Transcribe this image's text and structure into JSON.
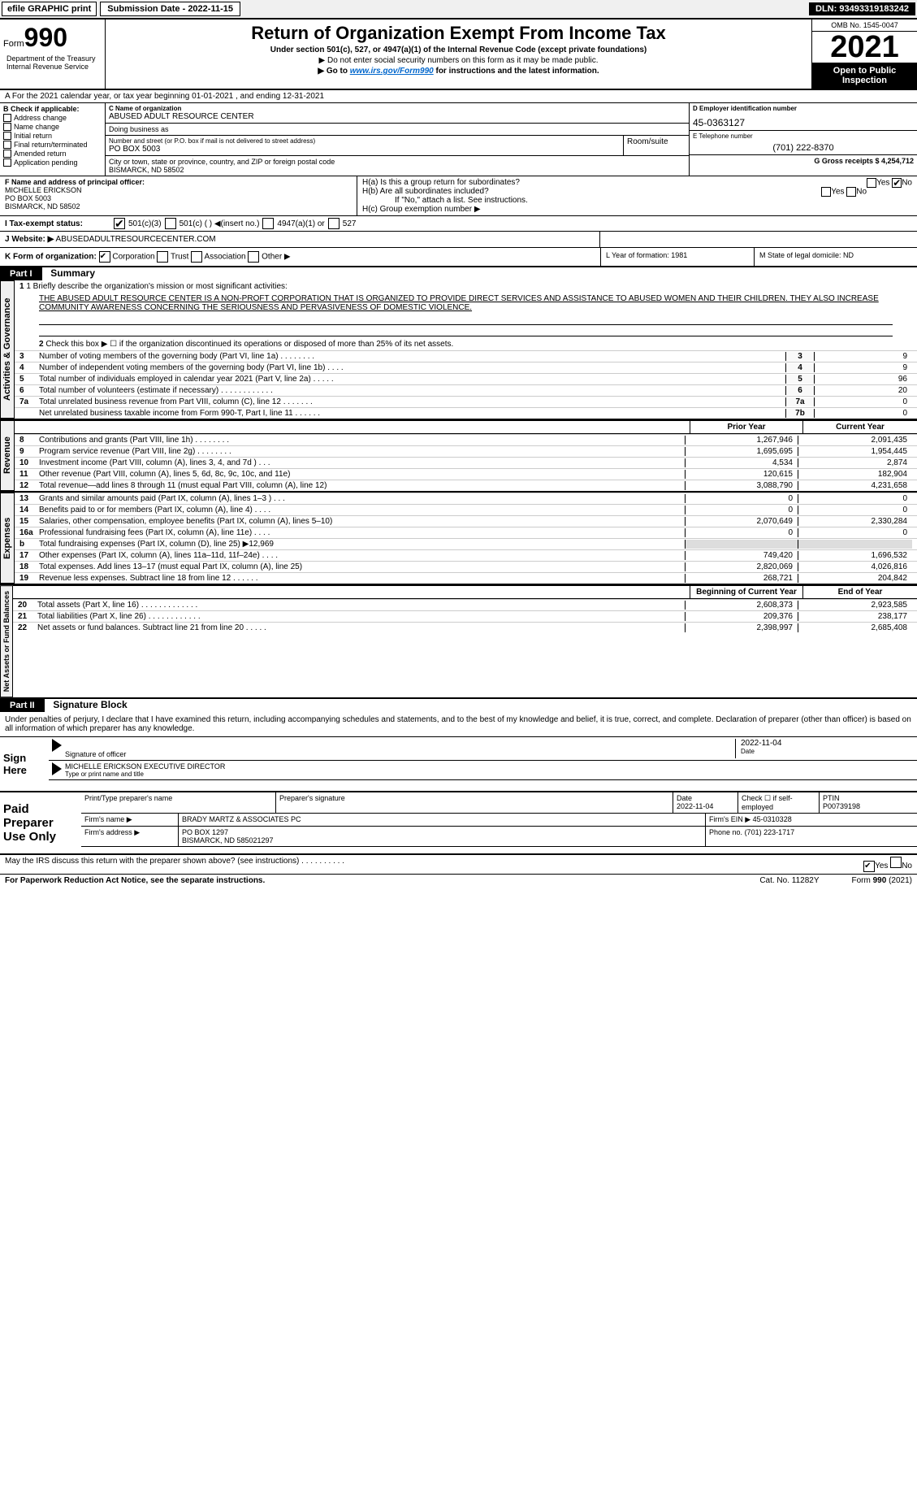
{
  "top": {
    "efile": "efile GRAPHIC print",
    "submission": "Submission Date - 2022-11-15",
    "dln": "DLN: 93493319183242"
  },
  "header": {
    "form_label": "Form",
    "form_num": "990",
    "title": "Return of Organization Exempt From Income Tax",
    "sub1": "Under section 501(c), 527, or 4947(a)(1) of the Internal Revenue Code (except private foundations)",
    "sub2": "▶ Do not enter social security numbers on this form as it may be made public.",
    "sub3_pre": "▶ Go to ",
    "sub3_link": "www.irs.gov/Form990",
    "sub3_post": " for instructions and the latest information.",
    "omb": "OMB No. 1545-0047",
    "year": "2021",
    "open_public": "Open to Public Inspection",
    "dept": "Department of the Treasury Internal Revenue Service"
  },
  "tax_year": "A For the 2021 calendar year, or tax year beginning 01-01-2021    , and ending 12-31-2021",
  "b": {
    "label": "B Check if applicable:",
    "items": [
      "Address change",
      "Name change",
      "Initial return",
      "Final return/terminated",
      "Amended return",
      "Application pending"
    ]
  },
  "c": {
    "name_label": "C Name of organization",
    "name": "ABUSED ADULT RESOURCE CENTER",
    "dba": "Doing business as",
    "addr_label": "Number and street (or P.O. box if mail is not delivered to street address)",
    "room_label": "Room/suite",
    "addr": "PO BOX 5003",
    "city_label": "City or town, state or province, country, and ZIP or foreign postal code",
    "city": "BISMARCK, ND  58502"
  },
  "d": {
    "label": "D Employer identification number",
    "val": "45-0363127"
  },
  "e": {
    "label": "E Telephone number",
    "val": "(701) 222-8370"
  },
  "g": "G Gross receipts $ 4,254,712",
  "f": {
    "label": "F  Name and address of principal officer:",
    "name": "MICHELLE ERICKSON",
    "addr1": "PO BOX 5003",
    "addr2": "BISMARCK, ND  58502"
  },
  "h": {
    "a": "H(a)  Is this a group return for subordinates?",
    "b": "H(b)  Are all subordinates included?",
    "b_note": "If \"No,\" attach a list. See instructions.",
    "c": "H(c)  Group exemption number ▶",
    "yes": "Yes",
    "no": "No"
  },
  "i_label": "I   Tax-exempt status:",
  "i_opts": [
    "501(c)(3)",
    "501(c) (   ) ◀(insert no.)",
    "4947(a)(1) or",
    "527"
  ],
  "j": {
    "label": "J   Website: ▶",
    "val": " ABUSEDADULTRESOURCECENTER.COM"
  },
  "k": {
    "label": "K Form of organization:",
    "opts": [
      "Corporation",
      "Trust",
      "Association",
      "Other ▶"
    ]
  },
  "l": "L Year of formation: 1981",
  "m": "M State of legal domicile: ND",
  "part1": {
    "header": "Part I",
    "title": "Summary",
    "vtab1": "Activities & Governance",
    "vtab2": "Revenue",
    "vtab3": "Expenses",
    "vtab4": "Net Assets or Fund Balances",
    "q1": "1  Briefly describe the organization's mission or most significant activities:",
    "mission": "THE ABUSED ADULT RESOURCE CENTER IS A NON-PROFT CORPORATION THAT IS ORGANIZED TO PROVIDE DIRECT SERVICES AND ASSISTANCE TO ABUSED WOMEN AND THEIR CHILDREN. THEY ALSO INCREASE COMMUNITY AWARENESS CONCERNING THE SERIOUSNESS AND PERVASIVENESS OF DOMESTIC VIOLENCE.",
    "q2": "Check this box ▶ ☐  if the organization discontinued its operations or disposed of more than 25% of its net assets.",
    "lines_single": [
      {
        "n": "3",
        "t": "Number of voting members of the governing body (Part VI, line 1a)  .    .    .    .    .    .    .    .",
        "c": "3",
        "v": "9"
      },
      {
        "n": "4",
        "t": "Number of independent voting members of the governing body (Part VI, line 1b)  .    .    .    .",
        "c": "4",
        "v": "9"
      },
      {
        "n": "5",
        "t": "Total number of individuals employed in calendar year 2021 (Part V, line 2a)  .    .    .    .    .",
        "c": "5",
        "v": "96"
      },
      {
        "n": "6",
        "t": "Total number of volunteers (estimate if necessary)  .    .    .    .    .    .    .    .    .    .    .    .",
        "c": "6",
        "v": "20"
      },
      {
        "n": "7a",
        "t": "Total unrelated business revenue from Part VIII, column (C), line 12  .    .    .    .    .    .    .",
        "c": "7a",
        "v": "0"
      },
      {
        "n": "",
        "t": "Net unrelated business taxable income from Form 990-T, Part I, line 11  .    .    .    .    .    .",
        "c": "7b",
        "v": "0"
      }
    ],
    "col_prior": "Prior Year",
    "col_current": "Current Year",
    "col_begin": "Beginning of Current Year",
    "col_end": "End of Year",
    "revenue": [
      {
        "n": "8",
        "t": "Contributions and grants (Part VIII, line 1h)  .    .    .    .    .    .    .    .",
        "c1": "1,267,946",
        "c2": "2,091,435"
      },
      {
        "n": "9",
        "t": "Program service revenue (Part VIII, line 2g)  .    .    .    .    .    .    .    .",
        "c1": "1,695,695",
        "c2": "1,954,445"
      },
      {
        "n": "10",
        "t": "Investment income (Part VIII, column (A), lines 3, 4, and 7d )  .    .    .",
        "c1": "4,534",
        "c2": "2,874"
      },
      {
        "n": "11",
        "t": "Other revenue (Part VIII, column (A), lines 5, 6d, 8c, 9c, 10c, and 11e)",
        "c1": "120,615",
        "c2": "182,904"
      },
      {
        "n": "12",
        "t": "Total revenue—add lines 8 through 11 (must equal Part VIII, column (A), line 12)",
        "c1": "3,088,790",
        "c2": "4,231,658"
      }
    ],
    "expenses": [
      {
        "n": "13",
        "t": "Grants and similar amounts paid (Part IX, column (A), lines 1–3 )  .    .    .",
        "c1": "0",
        "c2": "0"
      },
      {
        "n": "14",
        "t": "Benefits paid to or for members (Part IX, column (A), line 4)  .    .    .    .",
        "c1": "0",
        "c2": "0"
      },
      {
        "n": "15",
        "t": "Salaries, other compensation, employee benefits (Part IX, column (A), lines 5–10)",
        "c1": "2,070,649",
        "c2": "2,330,284"
      },
      {
        "n": "16a",
        "t": "Professional fundraising fees (Part IX, column (A), line 11e)  .    .    .    .",
        "c1": "0",
        "c2": "0"
      },
      {
        "n": "b",
        "t": "Total fundraising expenses (Part IX, column (D), line 25) ▶12,969",
        "c1": "",
        "c2": ""
      },
      {
        "n": "17",
        "t": "Other expenses (Part IX, column (A), lines 11a–11d, 11f–24e)  .    .    .    .",
        "c1": "749,420",
        "c2": "1,696,532"
      },
      {
        "n": "18",
        "t": "Total expenses. Add lines 13–17 (must equal Part IX, column (A), line 25)",
        "c1": "2,820,069",
        "c2": "4,026,816"
      },
      {
        "n": "19",
        "t": "Revenue less expenses. Subtract line 18 from line 12  .    .    .    .    .    .",
        "c1": "268,721",
        "c2": "204,842"
      }
    ],
    "netassets": [
      {
        "n": "20",
        "t": "Total assets (Part X, line 16)  .    .    .    .    .    .    .    .    .    .    .    .    .",
        "c1": "2,608,373",
        "c2": "2,923,585"
      },
      {
        "n": "21",
        "t": "Total liabilities (Part X, line 26)  .    .    .    .    .    .    .    .    .    .    .    .",
        "c1": "209,376",
        "c2": "238,177"
      },
      {
        "n": "22",
        "t": "Net assets or fund balances. Subtract line 21 from line 20  .    .    .    .    .",
        "c1": "2,398,997",
        "c2": "2,685,408"
      }
    ]
  },
  "part2": {
    "header": "Part II",
    "title": "Signature Block",
    "intro": "Under penalties of perjury, I declare that I have examined this return, including accompanying schedules and statements, and to the best of my knowledge and belief, it is true, correct, and complete. Declaration of preparer (other than officer) is based on all information of which preparer has any knowledge."
  },
  "sign": {
    "here": "Sign Here",
    "sig_label": "Signature of officer",
    "date": "2022-11-04",
    "date_label": "Date",
    "name": "MICHELLE ERICKSON  EXECUTIVE DIRECTOR",
    "name_label": "Type or print name and title"
  },
  "prep": {
    "label": "Paid Preparer Use Only",
    "h_name": "Print/Type preparer's name",
    "h_sig": "Preparer's signature",
    "h_date": "Date",
    "date": "2022-11-04",
    "check_label": "Check ☐ if self-employed",
    "ptin_label": "PTIN",
    "ptin": "P00739198",
    "firm_label": "Firm's name     ▶",
    "firm": "BRADY MARTZ & ASSOCIATES PC",
    "ein_label": "Firm's EIN ▶",
    "ein": "45-0310328",
    "addr_label": "Firm's address ▶",
    "addr1": "PO BOX 1297",
    "addr2": "BISMARCK, ND  585021297",
    "phone_label": "Phone no.",
    "phone": "(701) 223-1717"
  },
  "footer": {
    "discuss": "May the IRS discuss this return with the preparer shown above? (see instructions)  .    .    .    .    .    .    .    .    .    .",
    "yes": "Yes",
    "no": "No",
    "pra": "For Paperwork Reduction Act Notice, see the separate instructions.",
    "cat": "Cat. No. 11282Y",
    "form": "Form 990 (2021)"
  }
}
